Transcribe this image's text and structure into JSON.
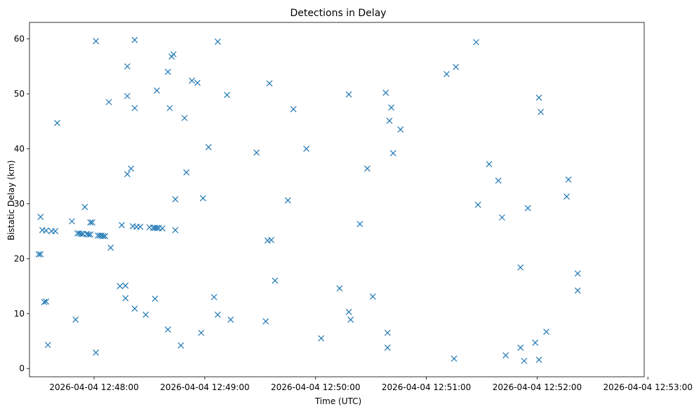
{
  "chart_data": {
    "type": "scatter",
    "title": "Detections in Delay",
    "xlabel": "Time (UTC)",
    "ylabel": "Bistatic Delay (km)",
    "marker": "x",
    "color": "#1f77b4",
    "grid": false,
    "x_axis_format": "datetime",
    "xlim": [
      "2026-04-04 12:47:25",
      "2026-04-04 12:52:58"
    ],
    "ylim": [
      -1.5,
      63
    ],
    "x_ticks": [
      "2026-04-04 12:48:00",
      "2026-04-04 12:49:00",
      "2026-04-04 12:50:00",
      "2026-04-04 12:51:00",
      "2026-04-04 12:52:00",
      "2026-04-04 12:53:00"
    ],
    "y_ticks": [
      0,
      10,
      20,
      30,
      40,
      50,
      60
    ],
    "points": [
      {
        "t": "2026-04-04 12:47:30",
        "y": 20.8
      },
      {
        "t": "2026-04-04 12:47:31",
        "y": 20.8
      },
      {
        "t": "2026-04-04 12:47:31",
        "y": 27.6
      },
      {
        "t": "2026-04-04 12:47:32",
        "y": 25.2
      },
      {
        "t": "2026-04-04 12:47:33",
        "y": 12.1
      },
      {
        "t": "2026-04-04 12:47:34",
        "y": 25.1
      },
      {
        "t": "2026-04-04 12:47:34",
        "y": 12.2
      },
      {
        "t": "2026-04-04 12:47:35",
        "y": 4.3
      },
      {
        "t": "2026-04-04 12:47:37",
        "y": 25.0
      },
      {
        "t": "2026-04-04 12:47:39",
        "y": 25.0
      },
      {
        "t": "2026-04-04 12:47:40",
        "y": 44.7
      },
      {
        "t": "2026-04-04 12:47:48",
        "y": 26.8
      },
      {
        "t": "2026-04-04 12:47:50",
        "y": 8.9
      },
      {
        "t": "2026-04-04 12:47:51",
        "y": 24.6
      },
      {
        "t": "2026-04-04 12:47:52",
        "y": 24.6
      },
      {
        "t": "2026-04-04 12:47:53",
        "y": 24.5
      },
      {
        "t": "2026-04-04 12:47:54",
        "y": 24.5
      },
      {
        "t": "2026-04-04 12:47:55",
        "y": 29.4
      },
      {
        "t": "2026-04-04 12:47:56",
        "y": 24.5
      },
      {
        "t": "2026-04-04 12:47:57",
        "y": 24.4
      },
      {
        "t": "2026-04-04 12:47:58",
        "y": 24.4
      },
      {
        "t": "2026-04-04 12:47:58",
        "y": 26.6
      },
      {
        "t": "2026-04-04 12:47:59",
        "y": 26.6
      },
      {
        "t": "2026-04-04 12:48:01",
        "y": 59.6
      },
      {
        "t": "2026-04-04 12:48:01",
        "y": 2.9
      },
      {
        "t": "2026-04-04 12:48:02",
        "y": 24.2
      },
      {
        "t": "2026-04-04 12:48:03",
        "y": 24.2
      },
      {
        "t": "2026-04-04 12:48:04",
        "y": 24.2
      },
      {
        "t": "2026-04-04 12:48:05",
        "y": 24.1
      },
      {
        "t": "2026-04-04 12:48:06",
        "y": 24.1
      },
      {
        "t": "2026-04-04 12:48:08",
        "y": 48.5
      },
      {
        "t": "2026-04-04 12:48:09",
        "y": 22.0
      },
      {
        "t": "2026-04-04 12:48:14",
        "y": 15.0
      },
      {
        "t": "2026-04-04 12:48:15",
        "y": 26.1
      },
      {
        "t": "2026-04-04 12:48:17",
        "y": 15.1
      },
      {
        "t": "2026-04-04 12:48:17",
        "y": 12.8
      },
      {
        "t": "2026-04-04 12:48:18",
        "y": 55.0
      },
      {
        "t": "2026-04-04 12:48:18",
        "y": 49.6
      },
      {
        "t": "2026-04-04 12:48:18",
        "y": 35.4
      },
      {
        "t": "2026-04-04 12:48:20",
        "y": 36.4
      },
      {
        "t": "2026-04-04 12:48:21",
        "y": 25.9
      },
      {
        "t": "2026-04-04 12:48:22",
        "y": 59.8
      },
      {
        "t": "2026-04-04 12:48:22",
        "y": 47.4
      },
      {
        "t": "2026-04-04 12:48:22",
        "y": 10.9
      },
      {
        "t": "2026-04-04 12:48:23",
        "y": 25.8
      },
      {
        "t": "2026-04-04 12:48:25",
        "y": 25.8
      },
      {
        "t": "2026-04-04 12:48:28",
        "y": 9.8
      },
      {
        "t": "2026-04-04 12:48:30",
        "y": 25.7
      },
      {
        "t": "2026-04-04 12:48:32",
        "y": 25.6
      },
      {
        "t": "2026-04-04 12:48:33",
        "y": 25.6
      },
      {
        "t": "2026-04-04 12:48:33",
        "y": 12.7
      },
      {
        "t": "2026-04-04 12:48:34",
        "y": 50.6
      },
      {
        "t": "2026-04-04 12:48:34",
        "y": 25.6
      },
      {
        "t": "2026-04-04 12:48:35",
        "y": 25.6
      },
      {
        "t": "2026-04-04 12:48:37",
        "y": 25.5
      },
      {
        "t": "2026-04-04 12:48:40",
        "y": 7.1
      },
      {
        "t": "2026-04-04 12:48:40",
        "y": 54.0
      },
      {
        "t": "2026-04-04 12:48:41",
        "y": 47.4
      },
      {
        "t": "2026-04-04 12:48:42",
        "y": 56.8
      },
      {
        "t": "2026-04-04 12:48:43",
        "y": 57.2
      },
      {
        "t": "2026-04-04 12:48:44",
        "y": 30.8
      },
      {
        "t": "2026-04-04 12:48:44",
        "y": 25.2
      },
      {
        "t": "2026-04-04 12:48:47",
        "y": 4.2
      },
      {
        "t": "2026-04-04 12:48:49",
        "y": 45.6
      },
      {
        "t": "2026-04-04 12:48:50",
        "y": 35.7
      },
      {
        "t": "2026-04-04 12:48:53",
        "y": 52.4
      },
      {
        "t": "2026-04-04 12:48:56",
        "y": 52.0
      },
      {
        "t": "2026-04-04 12:48:58",
        "y": 6.5
      },
      {
        "t": "2026-04-04 12:48:59",
        "y": 31.0
      },
      {
        "t": "2026-04-04 12:49:02",
        "y": 40.3
      },
      {
        "t": "2026-04-04 12:49:05",
        "y": 13.0
      },
      {
        "t": "2026-04-04 12:49:07",
        "y": 59.5
      },
      {
        "t": "2026-04-04 12:49:07",
        "y": 9.8
      },
      {
        "t": "2026-04-04 12:49:12",
        "y": 49.8
      },
      {
        "t": "2026-04-04 12:49:14",
        "y": 8.9
      },
      {
        "t": "2026-04-04 12:49:28",
        "y": 39.3
      },
      {
        "t": "2026-04-04 12:49:33",
        "y": 8.6
      },
      {
        "t": "2026-04-04 12:49:34",
        "y": 23.3
      },
      {
        "t": "2026-04-04 12:49:35",
        "y": 51.9
      },
      {
        "t": "2026-04-04 12:49:36",
        "y": 23.4
      },
      {
        "t": "2026-04-04 12:49:38",
        "y": 16.0
      },
      {
        "t": "2026-04-04 12:49:45",
        "y": 30.6
      },
      {
        "t": "2026-04-04 12:49:48",
        "y": 47.2
      },
      {
        "t": "2026-04-04 12:49:55",
        "y": 40.0
      },
      {
        "t": "2026-04-04 12:50:03",
        "y": 5.5
      },
      {
        "t": "2026-04-04 12:50:13",
        "y": 14.6
      },
      {
        "t": "2026-04-04 12:50:18",
        "y": 49.9
      },
      {
        "t": "2026-04-04 12:50:18",
        "y": 10.3
      },
      {
        "t": "2026-04-04 12:50:19",
        "y": 8.9
      },
      {
        "t": "2026-04-04 12:50:24",
        "y": 26.3
      },
      {
        "t": "2026-04-04 12:50:28",
        "y": 36.4
      },
      {
        "t": "2026-04-04 12:50:31",
        "y": 13.1
      },
      {
        "t": "2026-04-04 12:50:38",
        "y": 50.2
      },
      {
        "t": "2026-04-04 12:50:39",
        "y": 3.8
      },
      {
        "t": "2026-04-04 12:50:39",
        "y": 6.5
      },
      {
        "t": "2026-04-04 12:50:40",
        "y": 45.1
      },
      {
        "t": "2026-04-04 12:50:41",
        "y": 47.5
      },
      {
        "t": "2026-04-04 12:50:42",
        "y": 39.2
      },
      {
        "t": "2026-04-04 12:50:46",
        "y": 43.5
      },
      {
        "t": "2026-04-04 12:51:11",
        "y": 53.6
      },
      {
        "t": "2026-04-04 12:51:15",
        "y": 1.8
      },
      {
        "t": "2026-04-04 12:51:16",
        "y": 54.9
      },
      {
        "t": "2026-04-04 12:51:27",
        "y": 59.4
      },
      {
        "t": "2026-04-04 12:51:28",
        "y": 29.8
      },
      {
        "t": "2026-04-04 12:51:34",
        "y": 37.2
      },
      {
        "t": "2026-04-04 12:51:39",
        "y": 34.2
      },
      {
        "t": "2026-04-04 12:51:41",
        "y": 27.5
      },
      {
        "t": "2026-04-04 12:51:43",
        "y": 2.4
      },
      {
        "t": "2026-04-04 12:51:51",
        "y": 18.4
      },
      {
        "t": "2026-04-04 12:51:51",
        "y": 3.8
      },
      {
        "t": "2026-04-04 12:51:53",
        "y": 1.4
      },
      {
        "t": "2026-04-04 12:51:55",
        "y": 29.2
      },
      {
        "t": "2026-04-04 12:51:59",
        "y": 4.7
      },
      {
        "t": "2026-04-04 12:52:01",
        "y": 49.3
      },
      {
        "t": "2026-04-04 12:52:01",
        "y": 1.6
      },
      {
        "t": "2026-04-04 12:52:02",
        "y": 46.7
      },
      {
        "t": "2026-04-04 12:52:05",
        "y": 6.7
      },
      {
        "t": "2026-04-04 12:52:16",
        "y": 31.3
      },
      {
        "t": "2026-04-04 12:52:17",
        "y": 34.4
      },
      {
        "t": "2026-04-04 12:52:22",
        "y": 17.3
      },
      {
        "t": "2026-04-04 12:52:22",
        "y": 14.2
      }
    ]
  }
}
